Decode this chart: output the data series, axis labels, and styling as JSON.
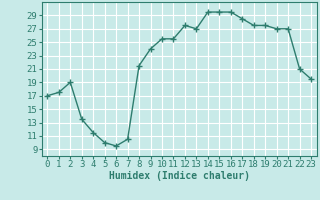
{
  "x": [
    0,
    1,
    2,
    3,
    4,
    5,
    6,
    7,
    8,
    9,
    10,
    11,
    12,
    13,
    14,
    15,
    16,
    17,
    18,
    19,
    20,
    21,
    22,
    23
  ],
  "y": [
    17,
    17.5,
    19,
    13.5,
    11.5,
    10,
    9.5,
    10.5,
    21.5,
    24,
    25.5,
    25.5,
    27.5,
    27,
    29.5,
    29.5,
    29.5,
    28.5,
    27.5,
    27.5,
    27,
    27,
    21,
    19.5
  ],
  "line_color": "#2E7D6E",
  "bg_color": "#C8EAE8",
  "grid_color": "#FFFFFF",
  "xlabel": "Humidex (Indice chaleur)",
  "xlim": [
    -0.5,
    23.5
  ],
  "ylim": [
    8,
    31
  ],
  "yticks": [
    9,
    11,
    13,
    15,
    17,
    19,
    21,
    23,
    25,
    27,
    29
  ],
  "xticks": [
    0,
    1,
    2,
    3,
    4,
    5,
    6,
    7,
    8,
    9,
    10,
    11,
    12,
    13,
    14,
    15,
    16,
    17,
    18,
    19,
    20,
    21,
    22,
    23
  ],
  "marker": "+",
  "markersize": 4,
  "linewidth": 1.0,
  "xlabel_fontsize": 7,
  "tick_fontsize": 6.5
}
